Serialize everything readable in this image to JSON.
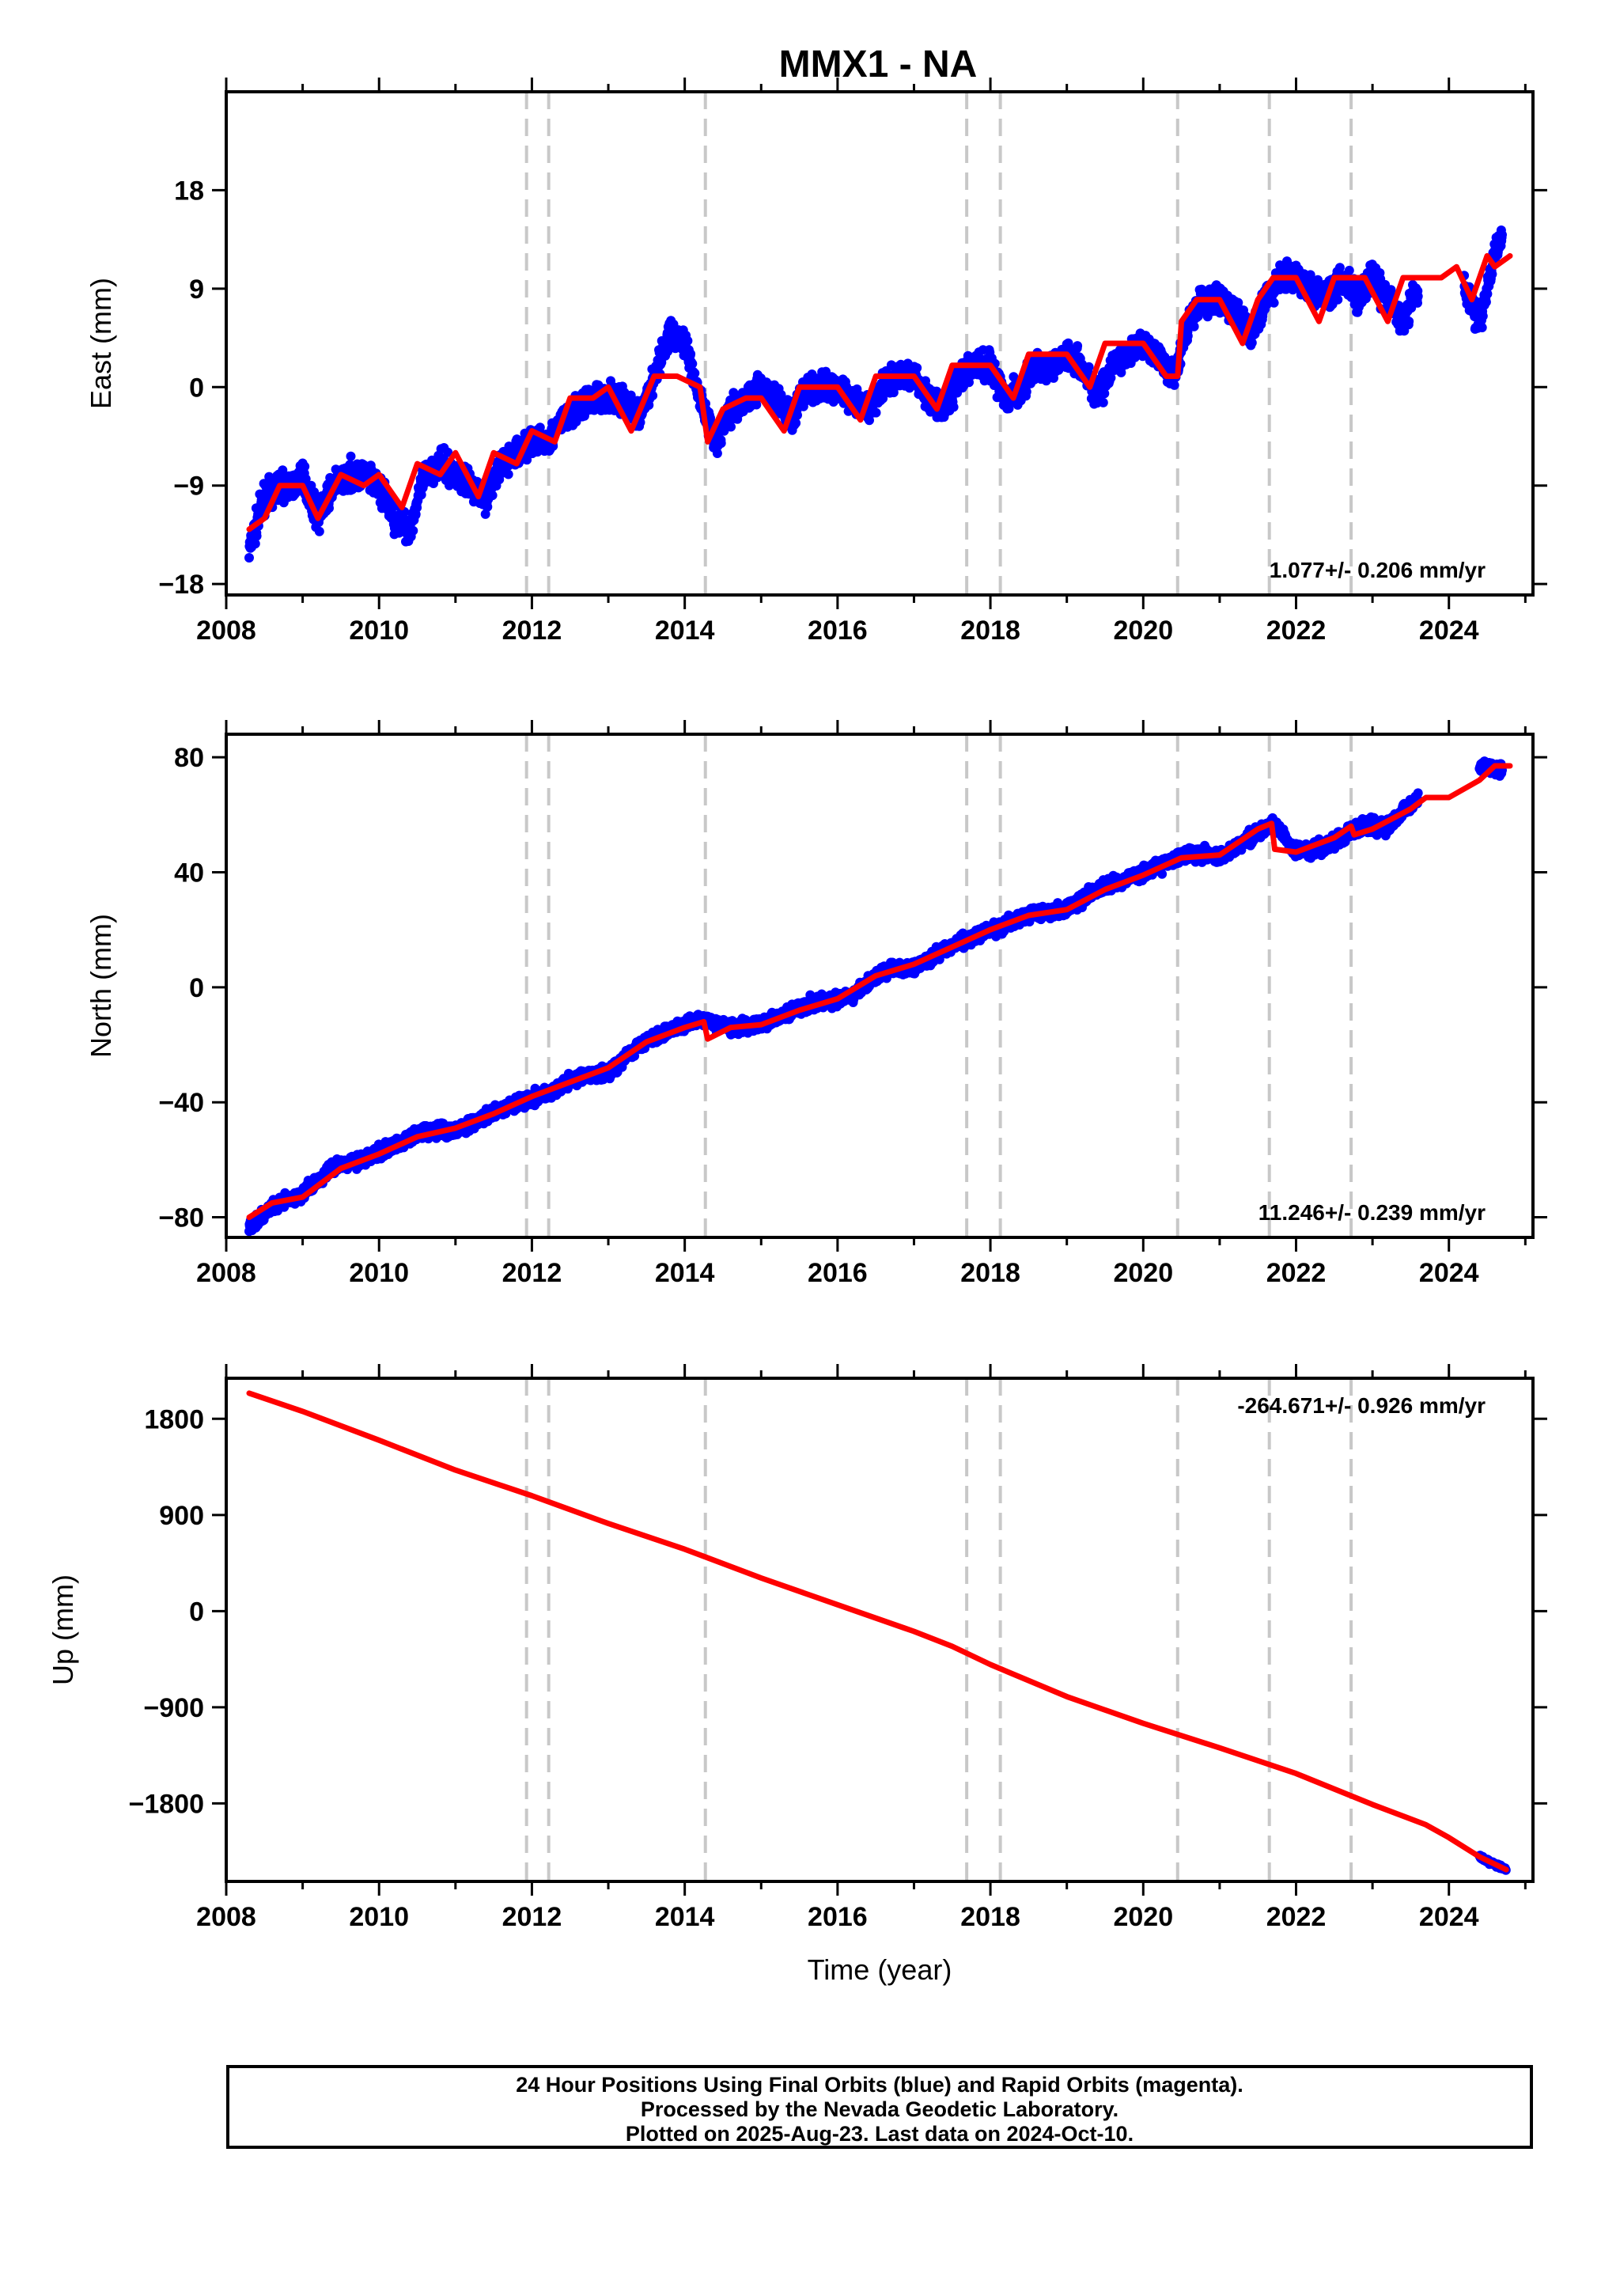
{
  "title": "MMX1 - NA",
  "colors": {
    "final_orbits": "#0000ff",
    "model": "#ff0000",
    "steps": "#c8c8c8",
    "axes": "#000000"
  },
  "chart_data": [
    {
      "type": "scatter",
      "panel": "east",
      "ylabel": "East (mm)",
      "xlabel": "",
      "xlim": [
        2008,
        2025.1
      ],
      "ylim": [
        -19,
        27
      ],
      "x_ticks": [
        2008,
        2010,
        2012,
        2014,
        2016,
        2018,
        2020,
        2022,
        2024
      ],
      "y_ticks": [
        -18,
        -9,
        0,
        9,
        18
      ],
      "y_tick_labels": [
        "−18",
        "−9",
        "0",
        "9",
        "18"
      ],
      "rate_label": "1.077+/- 0.206 mm/yr",
      "rate_position": "bottom-right",
      "grid": false,
      "series": [
        {
          "role": "daily positions (final orbits)",
          "color": "#0000ff",
          "x": [
            2008.3,
            2008.5,
            2008.7,
            2008.9,
            2009.0,
            2009.2,
            2009.4,
            2009.6,
            2009.8,
            2010.0,
            2010.2,
            2010.4,
            2010.6,
            2010.8,
            2011.0,
            2011.2,
            2011.4,
            2011.6,
            2011.8,
            2012.0,
            2012.2,
            2012.4,
            2012.6,
            2012.8,
            2013.0,
            2013.2,
            2013.4,
            2013.6,
            2013.8,
            2014.0,
            2014.2,
            2014.4,
            2014.6,
            2014.8,
            2015.0,
            2015.2,
            2015.4,
            2015.6,
            2015.8,
            2016.0,
            2016.2,
            2016.4,
            2016.6,
            2016.8,
            2017.0,
            2017.2,
            2017.4,
            2017.6,
            2017.8,
            2018.0,
            2018.2,
            2018.4,
            2018.6,
            2018.8,
            2019.0,
            2019.2,
            2019.4,
            2019.6,
            2019.8,
            2020.0,
            2020.2,
            2020.4,
            2020.6,
            2020.8,
            2021.0,
            2021.2,
            2021.4,
            2021.6,
            2021.8,
            2022.0,
            2022.2,
            2022.4,
            2022.6,
            2022.8,
            2023.0,
            2023.2,
            2023.4,
            2023.6,
            2024.2,
            2024.4,
            2024.6,
            2024.7
          ],
          "y": [
            -15,
            -10,
            -9,
            -9,
            -8,
            -12,
            -9,
            -8,
            -8,
            -9,
            -12,
            -13,
            -8,
            -7,
            -8,
            -9,
            -10,
            -7,
            -6,
            -5,
            -5,
            -3,
            -2,
            -1,
            -1,
            -1,
            -3,
            1,
            5,
            4,
            -1,
            -5,
            -2,
            -1,
            0,
            -1,
            -3,
            0,
            0,
            0,
            -1,
            -2,
            0,
            1,
            1,
            -1,
            -2,
            1,
            2,
            2,
            -1,
            0,
            2,
            2,
            3,
            2,
            -1,
            2,
            3,
            4,
            3,
            1,
            6,
            8,
            8,
            7,
            5,
            8,
            10,
            10,
            9,
            8,
            10,
            8,
            10,
            8,
            6,
            9,
            9,
            6,
            12,
            14
          ]
        },
        {
          "role": "model fit",
          "color": "#ff0000",
          "x": [
            2008.3,
            2008.5,
            2008.7,
            2009.0,
            2009.2,
            2009.5,
            2009.8,
            2010.0,
            2010.3,
            2010.5,
            2010.8,
            2011.0,
            2011.3,
            2011.5,
            2011.8,
            2012.0,
            2012.3,
            2012.5,
            2012.8,
            2013.0,
            2013.3,
            2013.6,
            2013.9,
            2014.2,
            2014.3,
            2014.5,
            2014.8,
            2015.0,
            2015.3,
            2015.5,
            2015.8,
            2016.0,
            2016.3,
            2016.5,
            2016.8,
            2017.0,
            2017.3,
            2017.5,
            2017.8,
            2018.0,
            2018.3,
            2018.5,
            2018.8,
            2019.0,
            2019.3,
            2019.5,
            2019.8,
            2020.0,
            2020.3,
            2020.45,
            2020.5,
            2020.7,
            2021.0,
            2021.3,
            2021.5,
            2021.7,
            2022.0,
            2022.3,
            2022.5,
            2022.7,
            2022.9,
            2023.2,
            2023.4,
            2023.6,
            2023.9,
            2024.1,
            2024.3,
            2024.5,
            2024.6,
            2024.8
          ],
          "y": [
            -13,
            -12,
            -9,
            -9,
            -12,
            -8,
            -9,
            -8,
            -11,
            -7,
            -8,
            -6,
            -10,
            -6,
            -7,
            -4,
            -5,
            -1,
            -1,
            0,
            -4,
            1,
            1,
            0,
            -5,
            -2,
            -1,
            -1,
            -4,
            0,
            0,
            0,
            -3,
            1,
            1,
            1,
            -2,
            2,
            2,
            2,
            -1,
            3,
            3,
            3,
            0,
            4,
            4,
            4,
            1,
            1,
            6,
            8,
            8,
            4,
            8,
            10,
            10,
            6,
            10,
            10,
            10,
            6,
            10,
            10,
            10,
            11,
            8,
            12,
            11,
            12
          ]
        }
      ]
    },
    {
      "type": "scatter",
      "panel": "north",
      "ylabel": "North (mm)",
      "xlabel": "",
      "xlim": [
        2008,
        2025.1
      ],
      "ylim": [
        -87,
        88
      ],
      "x_ticks": [
        2008,
        2010,
        2012,
        2014,
        2016,
        2018,
        2020,
        2022,
        2024
      ],
      "y_ticks": [
        -80,
        -40,
        0,
        40,
        80
      ],
      "y_tick_labels": [
        "−80",
        "−40",
        "0",
        "40",
        "80"
      ],
      "rate_label": "11.246+/- 0.239 mm/yr",
      "rate_position": "bottom-right",
      "grid": false,
      "series": [
        {
          "role": "daily positions (final orbits)",
          "color": "#0000ff",
          "x": [
            2008.3,
            2008.6,
            2009.0,
            2009.4,
            2009.8,
            2010.2,
            2010.6,
            2011.0,
            2011.4,
            2011.8,
            2012.2,
            2012.6,
            2013.0,
            2013.4,
            2013.8,
            2014.2,
            2014.6,
            2015.0,
            2015.4,
            2015.8,
            2016.2,
            2016.6,
            2017.0,
            2017.4,
            2017.8,
            2018.2,
            2018.6,
            2019.0,
            2019.4,
            2019.8,
            2020.2,
            2020.6,
            2021.0,
            2021.4,
            2021.7,
            2022.0,
            2022.4,
            2022.8,
            2023.2,
            2023.6,
            2024.4,
            2024.7
          ],
          "y": [
            -83,
            -76,
            -72,
            -62,
            -60,
            -55,
            -50,
            -50,
            -45,
            -40,
            -37,
            -31,
            -30,
            -20,
            -15,
            -11,
            -14,
            -13,
            -8,
            -5,
            -3,
            6,
            7,
            13,
            18,
            22,
            26,
            27,
            34,
            38,
            42,
            47,
            45,
            52,
            57,
            47,
            49,
            56,
            56,
            66,
            77,
            75
          ]
        },
        {
          "role": "model fit",
          "color": "#ff0000",
          "x": [
            2008.3,
            2008.6,
            2009.0,
            2009.5,
            2010.0,
            2010.5,
            2011.0,
            2011.5,
            2012.0,
            2012.5,
            2013.0,
            2013.5,
            2014.0,
            2014.25,
            2014.3,
            2014.6,
            2015.0,
            2015.5,
            2016.0,
            2016.5,
            2017.0,
            2017.5,
            2018.0,
            2018.5,
            2019.0,
            2019.5,
            2020.0,
            2020.5,
            2021.0,
            2021.5,
            2021.68,
            2021.72,
            2022.0,
            2022.5,
            2022.72,
            2022.76,
            2023.0,
            2023.5,
            2023.7,
            2024.0,
            2024.4,
            2024.6,
            2024.8
          ],
          "y": [
            -80,
            -75,
            -73,
            -63,
            -58,
            -52,
            -49,
            -44,
            -38,
            -33,
            -28,
            -19,
            -14,
            -12,
            -18,
            -14,
            -13,
            -8,
            -4,
            4,
            8,
            14,
            20,
            25,
            27,
            34,
            39,
            45,
            46,
            55,
            57,
            48,
            47,
            52,
            56,
            53,
            55,
            62,
            66,
            66,
            72,
            77,
            77
          ]
        }
      ]
    },
    {
      "type": "scatter",
      "panel": "up",
      "ylabel": "Up (mm)",
      "xlabel": "Time (year)",
      "xlim": [
        2008,
        2025.1
      ],
      "ylim": [
        -2530,
        2180
      ],
      "x_ticks": [
        2008,
        2010,
        2012,
        2014,
        2016,
        2018,
        2020,
        2022,
        2024
      ],
      "y_ticks": [
        -1800,
        -900,
        0,
        900,
        1800
      ],
      "y_tick_labels": [
        "−1800",
        "−900",
        "0",
        "900",
        "1800"
      ],
      "rate_label": "-264.671+/- 0.926 mm/yr",
      "rate_position": "top-right",
      "grid": false,
      "series": [
        {
          "role": "daily positions (final orbits)",
          "color": "#0000ff",
          "x": [
            2008.3,
            2009.0,
            2010.0,
            2011.0,
            2012.0,
            2013.0,
            2014.0,
            2015.0,
            2016.0,
            2017.0,
            2018.0,
            2019.0,
            2020.0,
            2021.0,
            2022.0,
            2023.0,
            2023.7,
            2024.4,
            2024.75
          ],
          "y": [
            2040,
            1870,
            1600,
            1320,
            1080,
            820,
            580,
            310,
            60,
            -190,
            -500,
            -800,
            -1050,
            -1280,
            -1520,
            -1810,
            -2000,
            -2300,
            -2420
          ]
        },
        {
          "role": "model fit",
          "color": "#ff0000",
          "x": [
            2008.3,
            2009.0,
            2010.0,
            2011.0,
            2012.0,
            2013.0,
            2014.0,
            2015.0,
            2016.0,
            2017.0,
            2017.5,
            2018.0,
            2019.0,
            2020.0,
            2021.0,
            2022.0,
            2023.0,
            2023.7,
            2024.0,
            2024.4,
            2024.75
          ],
          "y": [
            2040,
            1870,
            1600,
            1320,
            1080,
            820,
            580,
            310,
            60,
            -190,
            -330,
            -500,
            -800,
            -1050,
            -1280,
            -1520,
            -1810,
            -2000,
            -2120,
            -2300,
            -2420
          ]
        }
      ]
    }
  ],
  "step_epochs": [
    2011.93,
    2012.22,
    2014.27,
    2017.69,
    2018.13,
    2020.45,
    2021.65,
    2022.72
  ],
  "caption_lines": [
    "24 Hour Positions Using Final Orbits (blue) and Rapid Orbits (magenta).",
    "Processed by the Nevada Geodetic Laboratory.",
    "Plotted on 2025-Aug-23. Last data on 2024-Oct-10."
  ]
}
